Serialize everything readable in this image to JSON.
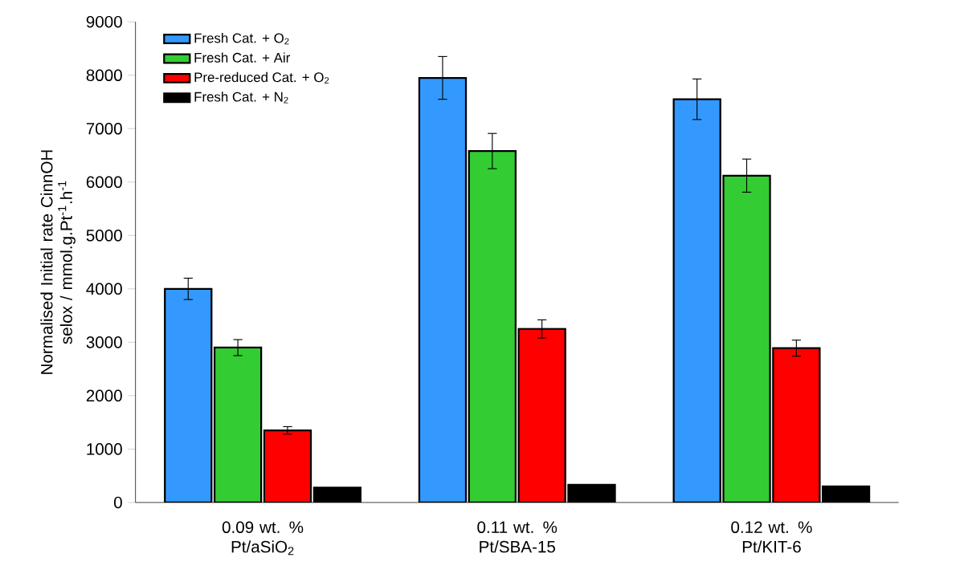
{
  "chart_data": {
    "type": "bar",
    "ylabel": "Normalised Initial rate CinnOH selox / mmol.g.Pt$^{-1}$.h$^{-1}$",
    "categories": [
      "0.09 wt. % Pt/aSiO$_{2}$",
      "0.11 wt. % Pt/SBA-15",
      "0.12 wt. % Pt/KIT-6"
    ],
    "series": [
      {
        "name": "Fresh Cat. + O$_{2}$",
        "color": "#3399ff",
        "values": [
          4000,
          7950,
          7550
        ],
        "errors": [
          200,
          400,
          380
        ]
      },
      {
        "name": "Fresh Cat. + Air",
        "color": "#33cc33",
        "values": [
          2900,
          6580,
          6120
        ],
        "errors": [
          150,
          330,
          310
        ]
      },
      {
        "name": "Pre-reduced Cat. + O$_{2}$",
        "color": "#ff0000",
        "values": [
          1350,
          3250,
          2890
        ],
        "errors": [
          70,
          170,
          150
        ]
      },
      {
        "name": "Fresh Cat. + N$_{2}$",
        "color": "#000000",
        "values": [
          280,
          330,
          300
        ]
      }
    ],
    "ylim": [
      0,
      9000
    ],
    "yticks": [
      0,
      1000,
      2000,
      3000,
      4000,
      5000,
      6000,
      7000,
      8000,
      9000
    ],
    "legend": "top left",
    "grid": false
  }
}
